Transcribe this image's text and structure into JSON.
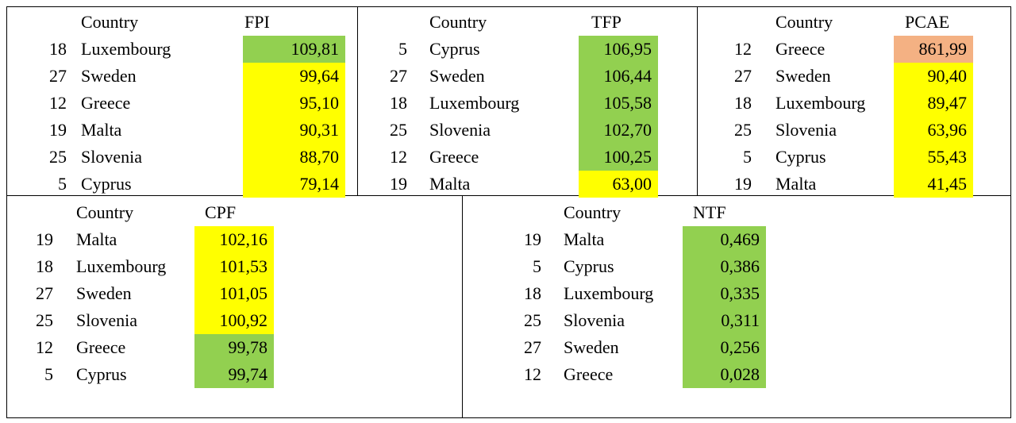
{
  "tables": [
    {
      "header": [
        "Country",
        "FPI"
      ],
      "rows": [
        [
          "18",
          "Luxembourg",
          "109,81"
        ],
        [
          "27",
          "Sweden",
          "99,64"
        ],
        [
          "12",
          "Greece",
          "95,10"
        ],
        [
          "19",
          "Malta",
          "90,31"
        ],
        [
          "25",
          "Slovenia",
          "88,70"
        ],
        [
          "5",
          "Cyprus",
          "79,14"
        ]
      ],
      "colors": [
        "#92d050",
        "#ffff00",
        "#ffff00",
        "#ffff00",
        "#ffff00",
        "#ffff00"
      ]
    },
    {
      "header": [
        "Country",
        "TFP"
      ],
      "rows": [
        [
          "5",
          "Cyprus",
          "106,95"
        ],
        [
          "27",
          "Sweden",
          "106,44"
        ],
        [
          "18",
          "Luxembourg",
          "105,58"
        ],
        [
          "25",
          "Slovenia",
          "102,70"
        ],
        [
          "12",
          "Greece",
          "100,25"
        ],
        [
          "19",
          "Malta",
          "63,00"
        ]
      ],
      "colors": [
        "#92d050",
        "#92d050",
        "#92d050",
        "#92d050",
        "#92d050",
        "#ffff00"
      ]
    },
    {
      "header": [
        "Country",
        "PCAE"
      ],
      "rows": [
        [
          "12",
          "Greece",
          "861,99"
        ],
        [
          "27",
          "Sweden",
          "90,40"
        ],
        [
          "18",
          "Luxembourg",
          "89,47"
        ],
        [
          "25",
          "Slovenia",
          "63,96"
        ],
        [
          "5",
          "Cyprus",
          "55,43"
        ],
        [
          "19",
          "Malta",
          "41,45"
        ]
      ],
      "colors": [
        "#f4b183",
        "#ffff00",
        "#ffff00",
        "#ffff00",
        "#ffff00",
        "#ffff00"
      ]
    },
    {
      "header": [
        "Country",
        "CPF"
      ],
      "rows": [
        [
          "19",
          "Malta",
          "102,16"
        ],
        [
          "18",
          "Luxembourg",
          "101,53"
        ],
        [
          "27",
          "Sweden",
          "101,05"
        ],
        [
          "25",
          "Slovenia",
          "100,92"
        ],
        [
          "12",
          "Greece",
          "99,78"
        ],
        [
          "5",
          "Cyprus",
          "99,74"
        ]
      ],
      "colors": [
        "#ffff00",
        "#ffff00",
        "#ffff00",
        "#ffff00",
        "#92d050",
        "#92d050"
      ]
    },
    {
      "header": [
        "Country",
        "NTF"
      ],
      "rows": [
        [
          "19",
          "Malta",
          "0,469"
        ],
        [
          "5",
          "Cyprus",
          "0,386"
        ],
        [
          "18",
          "Luxembourg",
          "0,335"
        ],
        [
          "25",
          "Slovenia",
          "0,311"
        ],
        [
          "27",
          "Sweden",
          "0,256"
        ],
        [
          "12",
          "Greece",
          "0,028"
        ]
      ],
      "colors": [
        "#92d050",
        "#92d050",
        "#92d050",
        "#92d050",
        "#92d050",
        "#92d050"
      ]
    }
  ]
}
